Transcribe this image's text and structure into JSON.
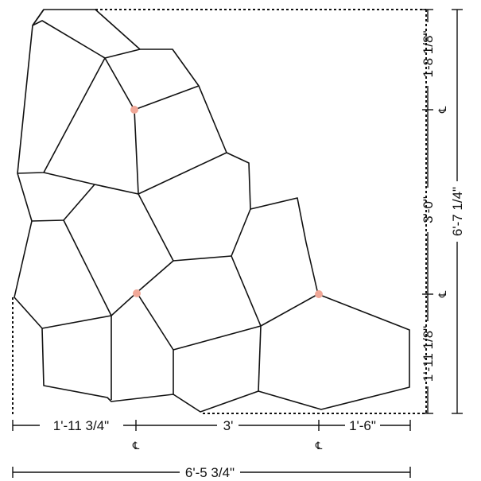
{
  "drawing": {
    "marker_color": "#f0a898",
    "line_color": "#111111",
    "centerline_symbol": "℄"
  },
  "dimensions": {
    "bottom": {
      "left_segment": "1'-11 3/4\"",
      "middle_segment": "3'",
      "right_segment": "1'-6\"",
      "overall_width": "6'-5 3/4\""
    },
    "right": {
      "top_segment": "1-8 1/8\"",
      "middle_segment": "3'-0\"",
      "bottom_segment": "1'-11 1/8\"",
      "overall_height": "6'-7 1/4\""
    }
  }
}
